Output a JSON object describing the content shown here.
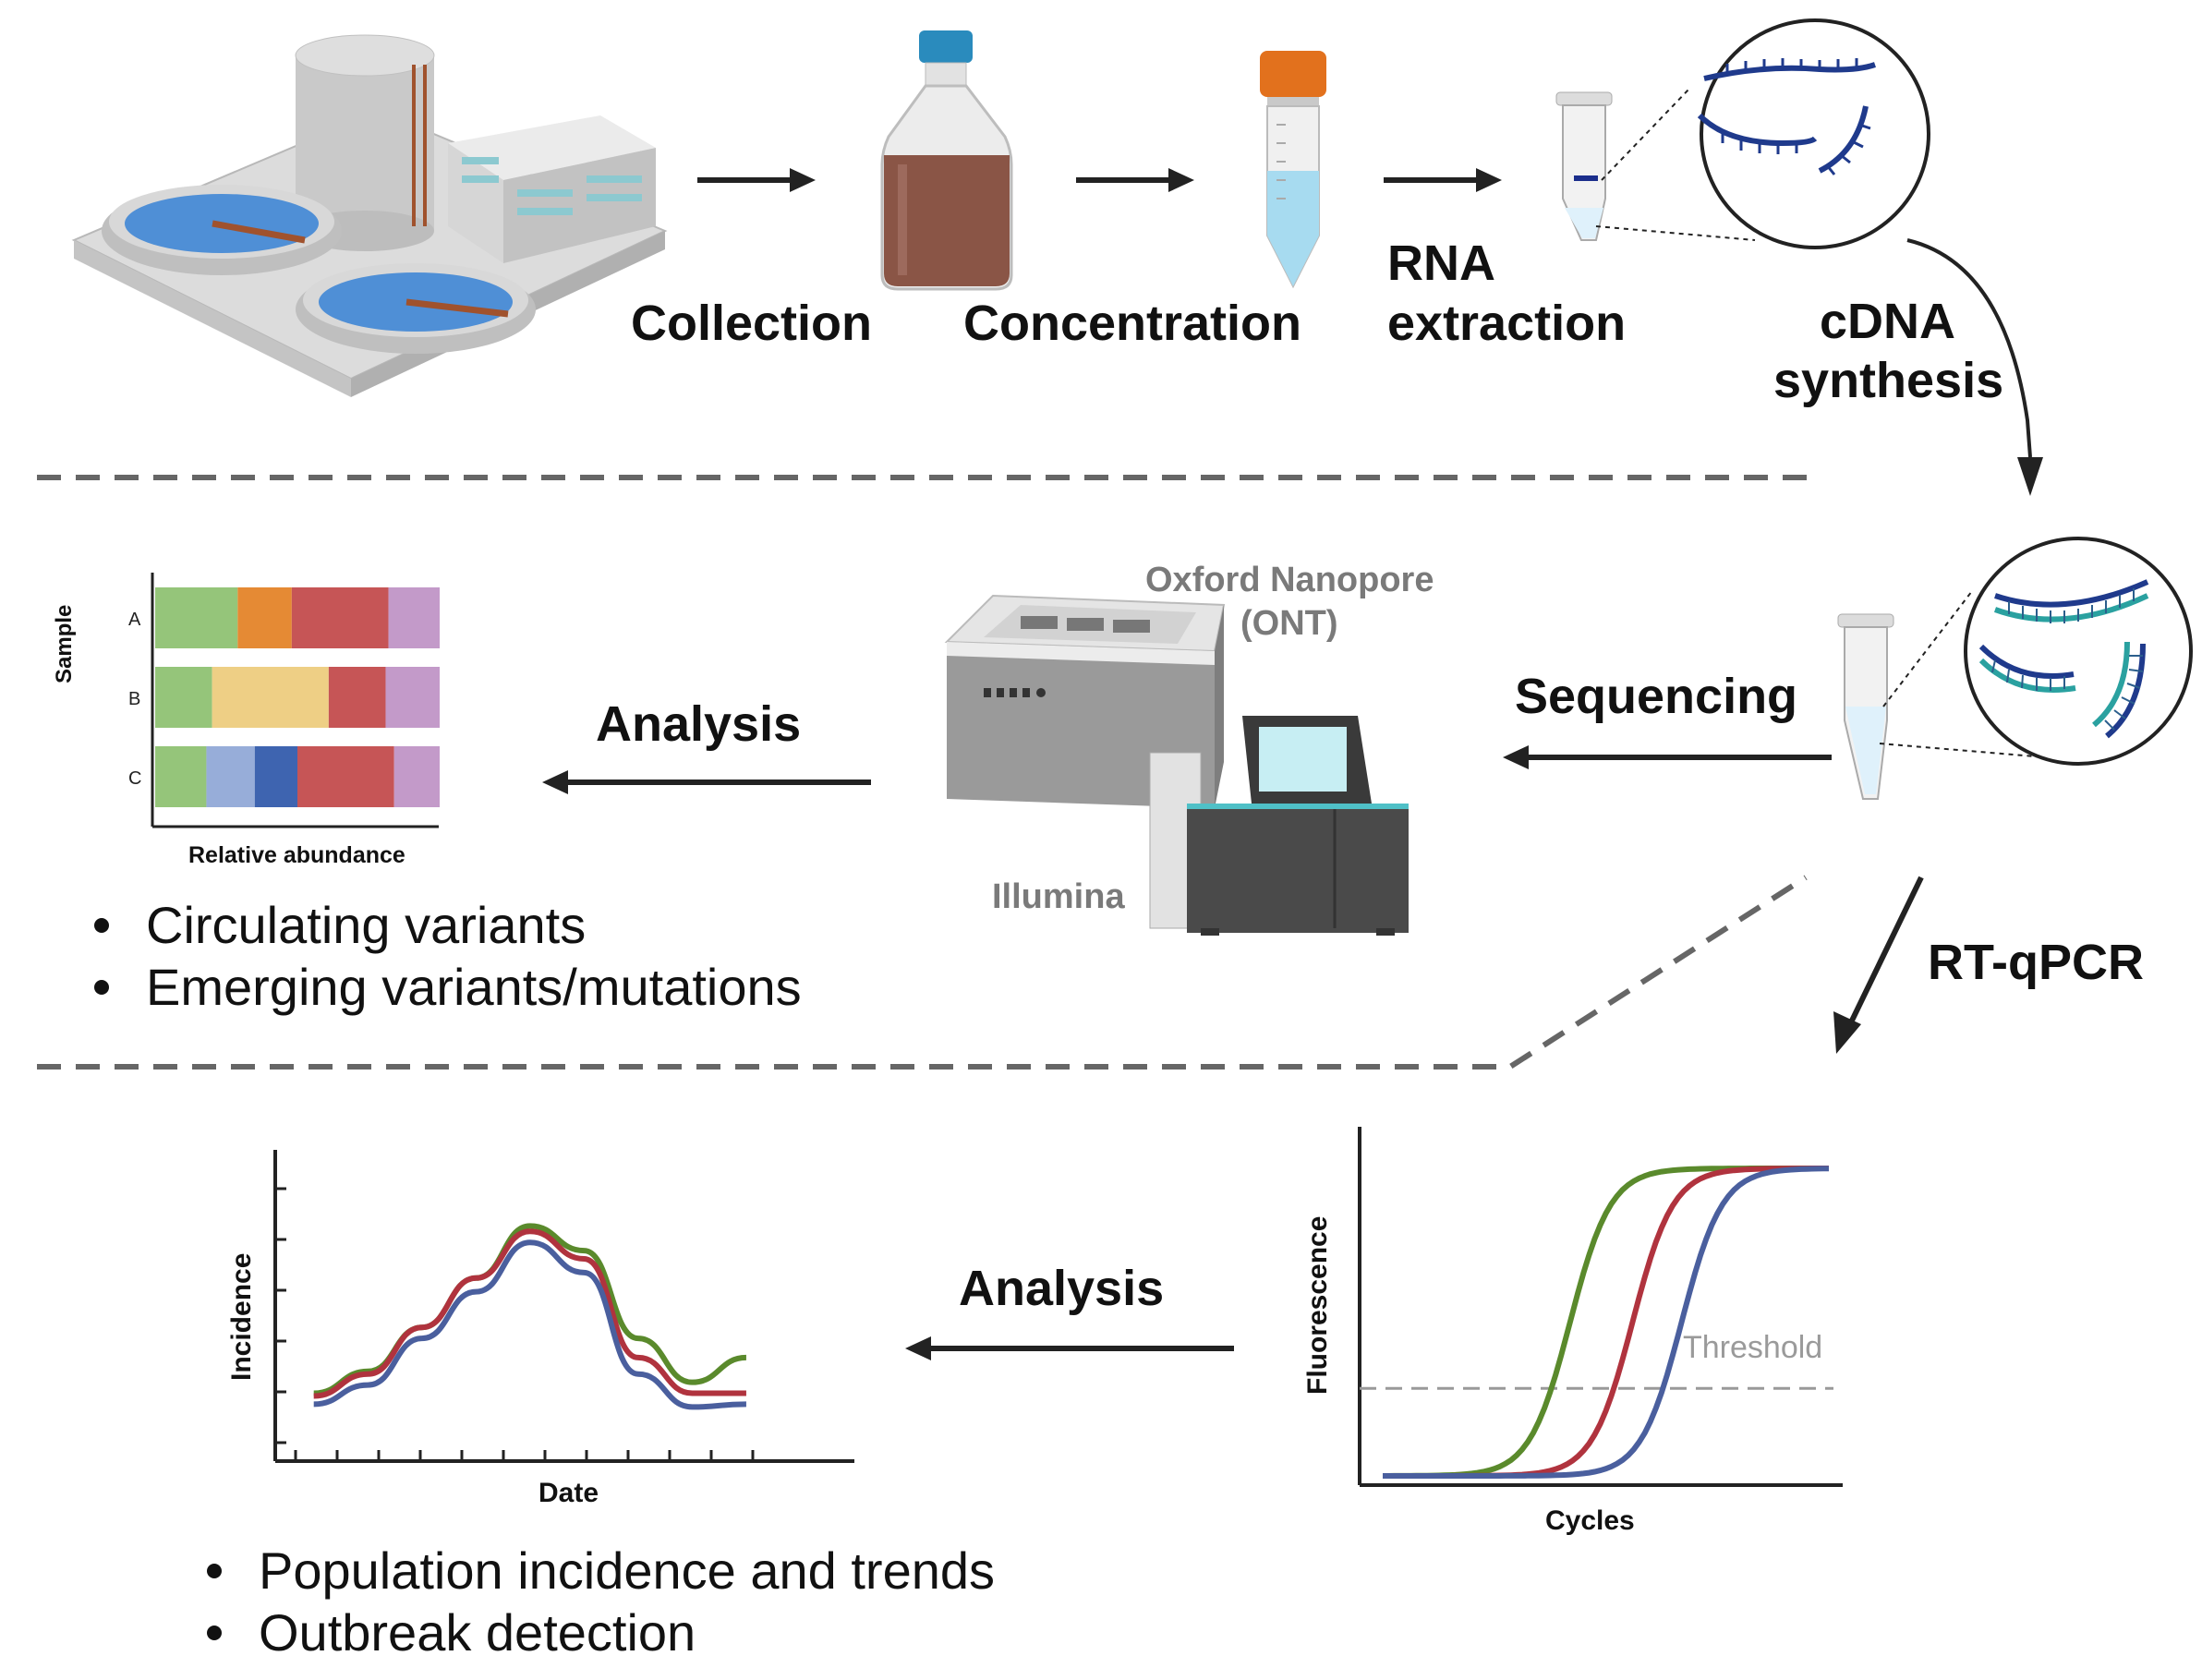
{
  "steps": {
    "collection": "Collection",
    "concentration": "Concentration",
    "rna_line1": "RNA",
    "rna_line2": "extraction",
    "cdna_line1": "cDNA",
    "cdna_line2": "synthesis",
    "sequencing": "Sequencing",
    "analysis_top": "Analysis",
    "rtqpcr": "RT-qPCR",
    "analysis_bottom": "Analysis"
  },
  "instruments": {
    "ont_line1": "Oxford Nanopore",
    "ont_line2": "(ONT)",
    "illumina": "Illumina"
  },
  "sequencing_outcomes": [
    "Circulating variants",
    "Emerging variants/mutations"
  ],
  "qpcr_outcomes": [
    "Population incidence and trends",
    "Outbreak detection"
  ],
  "colors": {
    "green": "#5a8a2c",
    "red": "#b0333e",
    "blue": "#4a5f9e",
    "dashed": "#666666"
  },
  "chart_data": [
    {
      "type": "bar",
      "subtype": "stacked-horizontal",
      "xlabel": "Relative abundance",
      "ylabel": "Sample",
      "categories": [
        "A",
        "B",
        "C"
      ],
      "rows": [
        {
          "label": "A",
          "segments": [
            {
              "value": 0.29,
              "color": "#95c57a"
            },
            {
              "value": 0.19,
              "color": "#e58a34"
            },
            {
              "value": 0.34,
              "color": "#c65556"
            },
            {
              "value": 0.18,
              "color": "#c39ac9"
            }
          ]
        },
        {
          "label": "B",
          "segments": [
            {
              "value": 0.2,
              "color": "#95c57a"
            },
            {
              "value": 0.41,
              "color": "#eecf85"
            },
            {
              "value": 0.2,
              "color": "#c65556"
            },
            {
              "value": 0.19,
              "color": "#c39ac9"
            }
          ]
        },
        {
          "label": "C",
          "segments": [
            {
              "value": 0.18,
              "color": "#95c57a"
            },
            {
              "value": 0.17,
              "color": "#97add9"
            },
            {
              "value": 0.15,
              "color": "#3e64b0"
            },
            {
              "value": 0.34,
              "color": "#c65556"
            },
            {
              "value": 0.16,
              "color": "#c39ac9"
            }
          ]
        }
      ]
    },
    {
      "type": "line",
      "xlabel": "Date",
      "ylabel": "Incidence",
      "x": [
        0,
        1,
        2,
        3,
        4,
        5,
        6,
        7,
        8
      ],
      "xlim": [
        -0.2,
        10
      ],
      "ylim": [
        0,
        10
      ],
      "series": [
        {
          "color": "#5a8a2c",
          "values": [
            1.8,
            2.6,
            4.2,
            6.0,
            7.9,
            7.0,
            3.8,
            2.2,
            3.1
          ]
        },
        {
          "color": "#b0333e",
          "values": [
            1.7,
            2.5,
            4.2,
            6.0,
            7.7,
            6.7,
            3.1,
            1.8,
            1.8
          ]
        },
        {
          "color": "#4a5f9e",
          "values": [
            1.4,
            2.1,
            3.8,
            5.5,
            7.3,
            6.2,
            2.5,
            1.3,
            1.4
          ]
        }
      ]
    },
    {
      "type": "line",
      "subtype": "sigmoid-amplification",
      "xlabel": "Cycles",
      "ylabel": "Fluorescence",
      "threshold_label": "Threshold",
      "threshold": 0.27,
      "series": [
        {
          "color": "#5a8a2c",
          "midpoint": 0.42
        },
        {
          "color": "#b0333e",
          "midpoint": 0.56
        },
        {
          "color": "#4a5f9e",
          "midpoint": 0.67
        }
      ]
    }
  ]
}
